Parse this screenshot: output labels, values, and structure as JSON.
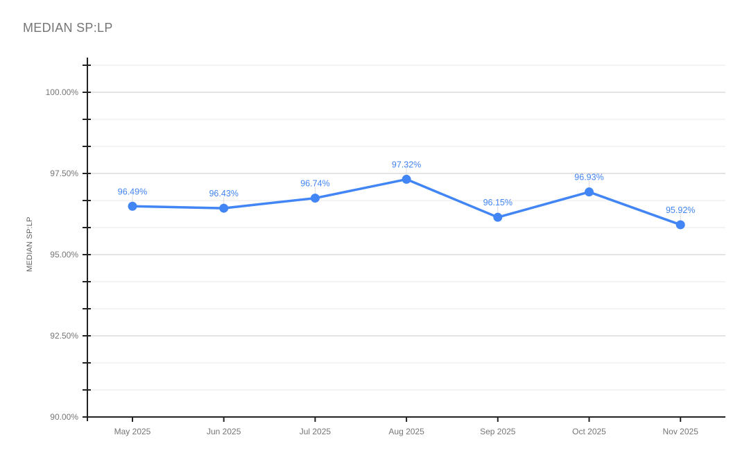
{
  "chart_data": {
    "type": "line",
    "title": "MEDIAN SP:LP",
    "ylabel": "MEDIAN SP:LP",
    "xlabel": "",
    "categories": [
      "May 2025",
      "Jun 2025",
      "Jul 2025",
      "Aug 2025",
      "Sep 2025",
      "Oct 2025",
      "Nov 2025"
    ],
    "series": [
      {
        "name": "MEDIAN SP:LP",
        "values": [
          96.49,
          96.43,
          96.74,
          97.32,
          96.15,
          96.93,
          95.92
        ],
        "point_labels": [
          "96.49%",
          "96.43%",
          "96.74%",
          "97.32%",
          "96.15%",
          "96.93%",
          "95.92%"
        ]
      }
    ],
    "y_axis": {
      "min": 90,
      "max": 100.8333,
      "major_step": 2.5,
      "minor_step": 0.8333,
      "tick_labels": [
        "90.00%",
        "92.50%",
        "95.00%",
        "97.50%",
        "100.00%"
      ],
      "tick_values": [
        90,
        92.5,
        95,
        97.5,
        100
      ]
    },
    "grid": true,
    "legend": "none",
    "colors": {
      "series": "#4285f4",
      "data_label": "#4285f4",
      "label_stem": "#dcdcdc",
      "axis_line": "#212121",
      "major_grid": "#c9c9c9",
      "minor_grid": "#e9e9e9",
      "tick_label": "#757575",
      "axis_title": "#616161",
      "chart_title": "#757575",
      "background": "#ffffff"
    }
  }
}
